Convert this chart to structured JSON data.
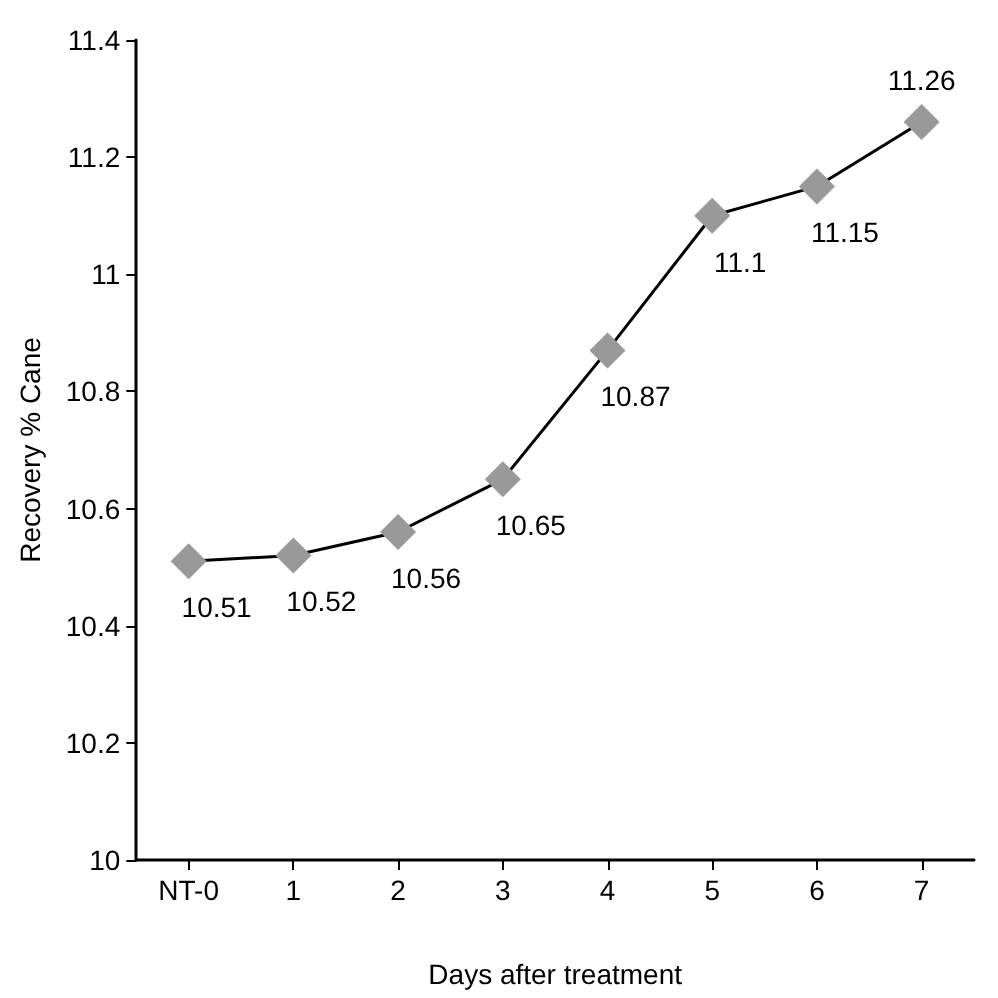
{
  "chart_data": {
    "type": "line",
    "xlabel": "Days after treatment",
    "ylabel": "Recovery % Cane",
    "categories": [
      "NT-0",
      "1",
      "2",
      "3",
      "4",
      "5",
      "6",
      "7"
    ],
    "series": [
      {
        "color": "#999999",
        "values": [
          10.51,
          10.52,
          10.56,
          10.65,
          10.87,
          11.1,
          11.15,
          11.26
        ]
      }
    ],
    "ylim": [
      10,
      11.4
    ],
    "yticks": [
      10,
      10.2,
      10.4,
      10.6,
      10.8,
      11,
      11.2,
      11.4
    ],
    "marker": "diamond",
    "line_style": "solid",
    "data_labels": true
  }
}
